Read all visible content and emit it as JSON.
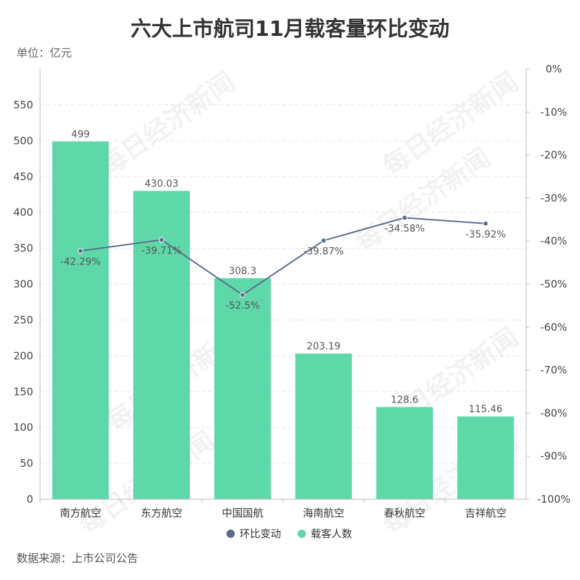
{
  "title": "六大上市航司11月载客量环比变动",
  "unit_label": "单位：亿元",
  "source": "数据来源：上市公司公告",
  "watermark": "每日经济新闻",
  "colors": {
    "bar": "#5fd8a9",
    "line": "#5a6b8c",
    "grid": "#e4e4e4",
    "axis": "#bbbbbb"
  },
  "chart_data": {
    "type": "bar",
    "categories": [
      "南方航空",
      "东方航空",
      "中国国航",
      "海南航空",
      "春秋航空",
      "吉祥航空"
    ],
    "series": [
      {
        "name": "载客人数",
        "type": "bar",
        "axis": "left",
        "values": [
          499,
          430.03,
          308.3,
          203.19,
          128.6,
          115.46
        ],
        "labels": [
          "499",
          "430.03",
          "308.3",
          "203.19",
          "128.6",
          "115.46"
        ]
      },
      {
        "name": "环比变动",
        "type": "line",
        "axis": "right",
        "values": [
          -42.29,
          -39.71,
          -52.5,
          -39.87,
          -34.58,
          -35.92
        ],
        "labels": [
          "-42.29%",
          "-39.71%",
          "-52.5%",
          "-39.87%",
          "-34.58%",
          "-35.92%"
        ]
      }
    ],
    "y_left": {
      "min": 0,
      "max": 600,
      "ticks": [
        "0",
        "50",
        "100",
        "150",
        "200",
        "250",
        "300",
        "350",
        "400",
        "450",
        "500",
        "550"
      ]
    },
    "y_right": {
      "min": -100,
      "max": 0,
      "ticks": [
        "0%",
        "-10%",
        "-20%",
        "-30%",
        "-40%",
        "-50%",
        "-60%",
        "-70%",
        "-80%",
        "-90%",
        "-100%"
      ]
    },
    "grid": true,
    "legend": "bottom-center",
    "legend_items": [
      "环比变动",
      "载客人数"
    ]
  }
}
